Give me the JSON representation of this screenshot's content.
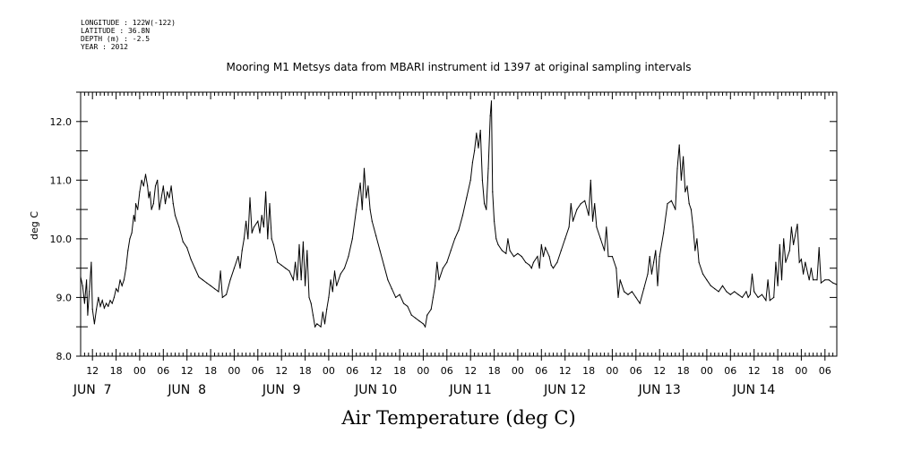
{
  "metadata": {
    "longitude": "LONGITUDE : 122W(-122)",
    "latitude": "LATITUDE : 36.8N",
    "depth": "DEPTH (m) : -2.5",
    "year": "YEAR : 2012"
  },
  "chart_data": {
    "type": "line",
    "title": "Mooring M1 Metsys data from MBARI instrument id 1397 at original sampling intervals",
    "xlabel": "Air Temperature (deg C)",
    "ylabel": "deg C",
    "ylim": [
      8.0,
      12.5
    ],
    "y_ticks": [
      "8.0",
      "9.0",
      "10.0",
      "11.0",
      "12.0"
    ],
    "x_unit": "hours since JUN 7 00:00",
    "xlim": [
      -15,
      177
    ],
    "x_hour_ticks": [
      {
        "x": -12,
        "label": "12"
      },
      {
        "x": -6,
        "label": "18"
      },
      {
        "x": 0,
        "label": "00"
      },
      {
        "x": 6,
        "label": "06"
      },
      {
        "x": 12,
        "label": "12"
      },
      {
        "x": 18,
        "label": "18"
      },
      {
        "x": 24,
        "label": "00"
      },
      {
        "x": 30,
        "label": "06"
      },
      {
        "x": 36,
        "label": "12"
      },
      {
        "x": 42,
        "label": "18"
      },
      {
        "x": 48,
        "label": "00"
      },
      {
        "x": 54,
        "label": "06"
      },
      {
        "x": 60,
        "label": "12"
      },
      {
        "x": 66,
        "label": "18"
      },
      {
        "x": 72,
        "label": "00"
      },
      {
        "x": 78,
        "label": "06"
      },
      {
        "x": 84,
        "label": "12"
      },
      {
        "x": 90,
        "label": "18"
      },
      {
        "x": 96,
        "label": "00"
      },
      {
        "x": 102,
        "label": "06"
      },
      {
        "x": 108,
        "label": "12"
      },
      {
        "x": 114,
        "label": "18"
      },
      {
        "x": 120,
        "label": "00"
      },
      {
        "x": 126,
        "label": "06"
      },
      {
        "x": 132,
        "label": "12"
      },
      {
        "x": 138,
        "label": "18"
      },
      {
        "x": 144,
        "label": "00"
      },
      {
        "x": 150,
        "label": "06"
      },
      {
        "x": 156,
        "label": "12"
      },
      {
        "x": 162,
        "label": "18"
      },
      {
        "x": 168,
        "label": "00"
      },
      {
        "x": 174,
        "label": "06"
      }
    ],
    "x_day_labels": [
      {
        "x": -12,
        "label": "JUN  7"
      },
      {
        "x": 12,
        "label": "JUN  8"
      },
      {
        "x": 36,
        "label": "JUN  9"
      },
      {
        "x": 60,
        "label": "JUN 10"
      },
      {
        "x": 84,
        "label": "JUN 11"
      },
      {
        "x": 108,
        "label": "JUN 12"
      },
      {
        "x": 132,
        "label": "JUN 13"
      },
      {
        "x": 156,
        "label": "JUN 14"
      }
    ],
    "series": [
      {
        "color": "#000000",
        "points": [
          [
            -15,
            9.35
          ],
          [
            -14.5,
            9.2
          ],
          [
            -14,
            8.9
          ],
          [
            -13.5,
            9.3
          ],
          [
            -13.2,
            8.7
          ],
          [
            -12.8,
            9.1
          ],
          [
            -12.3,
            9.6
          ],
          [
            -12,
            8.8
          ],
          [
            -11.5,
            8.55
          ],
          [
            -11,
            8.8
          ],
          [
            -10.5,
            9.0
          ],
          [
            -10,
            8.85
          ],
          [
            -9.5,
            8.95
          ],
          [
            -9,
            8.82
          ],
          [
            -8.5,
            8.9
          ],
          [
            -8,
            8.85
          ],
          [
            -7.5,
            8.95
          ],
          [
            -7,
            8.9
          ],
          [
            -6.5,
            9.0
          ],
          [
            -6,
            9.15
          ],
          [
            -5.5,
            9.1
          ],
          [
            -5,
            9.3
          ],
          [
            -4.5,
            9.2
          ],
          [
            -4,
            9.3
          ],
          [
            -3.5,
            9.5
          ],
          [
            -3,
            9.8
          ],
          [
            -2.5,
            10.0
          ],
          [
            -2,
            10.1
          ],
          [
            -1.5,
            10.4
          ],
          [
            -1.2,
            10.3
          ],
          [
            -1,
            10.6
          ],
          [
            -0.5,
            10.5
          ],
          [
            0,
            10.8
          ],
          [
            0.5,
            11.0
          ],
          [
            1,
            10.9
          ],
          [
            1.5,
            11.1
          ],
          [
            2,
            10.9
          ],
          [
            2.3,
            10.7
          ],
          [
            2.6,
            10.8
          ],
          [
            3,
            10.5
          ],
          [
            3.5,
            10.6
          ],
          [
            4,
            10.9
          ],
          [
            4.5,
            11.0
          ],
          [
            5,
            10.5
          ],
          [
            5.5,
            10.7
          ],
          [
            6,
            10.9
          ],
          [
            6.5,
            10.6
          ],
          [
            7,
            10.8
          ],
          [
            7.5,
            10.7
          ],
          [
            8,
            10.9
          ],
          [
            8.5,
            10.6
          ],
          [
            9,
            10.4
          ],
          [
            10,
            10.2
          ],
          [
            11,
            9.95
          ],
          [
            12,
            9.85
          ],
          [
            13,
            9.65
          ],
          [
            14,
            9.5
          ],
          [
            15,
            9.35
          ],
          [
            16,
            9.3
          ],
          [
            17,
            9.25
          ],
          [
            18,
            9.2
          ],
          [
            19,
            9.15
          ],
          [
            20,
            9.1
          ],
          [
            20.5,
            9.45
          ],
          [
            21,
            9.0
          ],
          [
            22,
            9.05
          ],
          [
            23,
            9.3
          ],
          [
            24,
            9.5
          ],
          [
            25,
            9.7
          ],
          [
            25.5,
            9.5
          ],
          [
            26,
            9.8
          ],
          [
            26.5,
            10.0
          ],
          [
            27,
            10.3
          ],
          [
            27.5,
            10.0
          ],
          [
            28,
            10.7
          ],
          [
            28.5,
            10.1
          ],
          [
            29,
            10.2
          ],
          [
            30,
            10.3
          ],
          [
            30.5,
            10.1
          ],
          [
            31,
            10.4
          ],
          [
            31.5,
            10.2
          ],
          [
            32,
            10.8
          ],
          [
            32.5,
            10.0
          ],
          [
            33,
            10.6
          ],
          [
            33.5,
            10.0
          ],
          [
            34,
            9.9
          ],
          [
            35,
            9.6
          ],
          [
            36,
            9.55
          ],
          [
            37,
            9.5
          ],
          [
            38,
            9.45
          ],
          [
            39,
            9.3
          ],
          [
            39.5,
            9.6
          ],
          [
            40,
            9.3
          ],
          [
            40.5,
            9.9
          ],
          [
            41,
            9.3
          ],
          [
            41.5,
            9.95
          ],
          [
            42,
            9.2
          ],
          [
            42.5,
            9.8
          ],
          [
            43,
            9.0
          ],
          [
            43.5,
            8.9
          ],
          [
            44,
            8.7
          ],
          [
            44.5,
            8.5
          ],
          [
            45,
            8.55
          ],
          [
            46,
            8.5
          ],
          [
            46.5,
            8.75
          ],
          [
            47,
            8.55
          ],
          [
            47.5,
            8.8
          ],
          [
            48,
            9.0
          ],
          [
            48.5,
            9.3
          ],
          [
            49,
            9.1
          ],
          [
            49.5,
            9.45
          ],
          [
            50,
            9.2
          ],
          [
            51,
            9.4
          ],
          [
            52,
            9.5
          ],
          [
            53,
            9.7
          ],
          [
            54,
            10.0
          ],
          [
            55,
            10.5
          ],
          [
            56,
            10.95
          ],
          [
            56.5,
            10.5
          ],
          [
            57,
            11.2
          ],
          [
            57.5,
            10.7
          ],
          [
            58,
            10.9
          ],
          [
            58.5,
            10.5
          ],
          [
            59,
            10.3
          ],
          [
            60,
            10.05
          ],
          [
            61,
            9.8
          ],
          [
            62,
            9.55
          ],
          [
            63,
            9.3
          ],
          [
            64,
            9.15
          ],
          [
            65,
            9.0
          ],
          [
            66,
            9.05
          ],
          [
            67,
            8.9
          ],
          [
            68,
            8.85
          ],
          [
            69,
            8.7
          ],
          [
            70,
            8.65
          ],
          [
            71,
            8.6
          ],
          [
            72,
            8.55
          ],
          [
            72.5,
            8.5
          ],
          [
            73,
            8.7
          ],
          [
            74,
            8.8
          ],
          [
            74.5,
            9.0
          ],
          [
            75,
            9.2
          ],
          [
            75.5,
            9.6
          ],
          [
            76,
            9.3
          ],
          [
            77,
            9.5
          ],
          [
            78,
            9.6
          ],
          [
            79,
            9.8
          ],
          [
            80,
            10.0
          ],
          [
            81,
            10.15
          ],
          [
            82,
            10.4
          ],
          [
            83,
            10.7
          ],
          [
            84,
            11.0
          ],
          [
            84.5,
            11.3
          ],
          [
            85,
            11.5
          ],
          [
            85.5,
            11.8
          ],
          [
            86,
            11.55
          ],
          [
            86.5,
            11.85
          ],
          [
            87,
            11.0
          ],
          [
            87.5,
            10.6
          ],
          [
            88,
            10.5
          ],
          [
            88.5,
            11.2
          ],
          [
            89,
            12.1
          ],
          [
            89.3,
            12.35
          ],
          [
            89.6,
            10.8
          ],
          [
            90,
            10.3
          ],
          [
            90.5,
            10.0
          ],
          [
            91,
            9.9
          ],
          [
            92,
            9.8
          ],
          [
            93,
            9.75
          ],
          [
            93.5,
            10.0
          ],
          [
            94,
            9.8
          ],
          [
            95,
            9.7
          ],
          [
            96,
            9.75
          ],
          [
            97,
            9.7
          ],
          [
            98,
            9.6
          ],
          [
            99,
            9.55
          ],
          [
            99.5,
            9.5
          ],
          [
            100,
            9.6
          ],
          [
            101,
            9.7
          ],
          [
            101.5,
            9.5
          ],
          [
            102,
            9.9
          ],
          [
            102.5,
            9.7
          ],
          [
            103,
            9.85
          ],
          [
            104,
            9.7
          ],
          [
            104.5,
            9.55
          ],
          [
            105,
            9.5
          ],
          [
            106,
            9.6
          ],
          [
            107,
            9.8
          ],
          [
            108,
            10.0
          ],
          [
            109,
            10.2
          ],
          [
            109.5,
            10.6
          ],
          [
            110,
            10.3
          ],
          [
            111,
            10.5
          ],
          [
            112,
            10.6
          ],
          [
            113,
            10.65
          ],
          [
            114,
            10.4
          ],
          [
            114.5,
            11.0
          ],
          [
            115,
            10.3
          ],
          [
            115.5,
            10.6
          ],
          [
            116,
            10.2
          ],
          [
            117,
            10.0
          ],
          [
            118,
            9.8
          ],
          [
            118.5,
            10.2
          ],
          [
            119,
            9.7
          ],
          [
            120,
            9.7
          ],
          [
            121,
            9.5
          ],
          [
            121.5,
            9.0
          ],
          [
            122,
            9.3
          ],
          [
            123,
            9.1
          ],
          [
            124,
            9.05
          ],
          [
            125,
            9.1
          ],
          [
            126,
            9.0
          ],
          [
            127,
            8.9
          ],
          [
            128,
            9.15
          ],
          [
            129,
            9.4
          ],
          [
            129.5,
            9.7
          ],
          [
            130,
            9.4
          ],
          [
            130.5,
            9.6
          ],
          [
            131,
            9.8
          ],
          [
            131.5,
            9.2
          ],
          [
            132,
            9.7
          ],
          [
            133,
            10.1
          ],
          [
            134,
            10.6
          ],
          [
            135,
            10.65
          ],
          [
            136,
            10.5
          ],
          [
            136.5,
            11.2
          ],
          [
            137,
            11.6
          ],
          [
            137.5,
            11.0
          ],
          [
            138,
            11.4
          ],
          [
            138.5,
            10.8
          ],
          [
            139,
            10.9
          ],
          [
            139.5,
            10.6
          ],
          [
            140,
            10.5
          ],
          [
            140.5,
            10.2
          ],
          [
            141,
            9.8
          ],
          [
            141.5,
            10.0
          ],
          [
            142,
            9.6
          ],
          [
            143,
            9.4
          ],
          [
            144,
            9.3
          ],
          [
            145,
            9.2
          ],
          [
            146,
            9.15
          ],
          [
            147,
            9.1
          ],
          [
            148,
            9.2
          ],
          [
            149,
            9.1
          ],
          [
            150,
            9.05
          ],
          [
            151,
            9.1
          ],
          [
            152,
            9.05
          ],
          [
            153,
            9.0
          ],
          [
            154,
            9.1
          ],
          [
            154.5,
            9.0
          ],
          [
            155,
            9.05
          ],
          [
            155.5,
            9.4
          ],
          [
            156,
            9.1
          ],
          [
            157,
            9.0
          ],
          [
            158,
            9.05
          ],
          [
            159,
            8.95
          ],
          [
            159.5,
            9.3
          ],
          [
            160,
            8.95
          ],
          [
            161,
            9.0
          ],
          [
            161.5,
            9.6
          ],
          [
            162,
            9.2
          ],
          [
            162.5,
            9.9
          ],
          [
            163,
            9.3
          ],
          [
            163.5,
            10.0
          ],
          [
            164,
            9.6
          ],
          [
            165,
            9.8
          ],
          [
            165.5,
            10.2
          ],
          [
            166,
            9.9
          ],
          [
            167,
            10.25
          ],
          [
            167.5,
            9.6
          ],
          [
            168,
            9.65
          ],
          [
            168.5,
            9.4
          ],
          [
            169,
            9.6
          ],
          [
            170,
            9.3
          ],
          [
            170.5,
            9.5
          ],
          [
            171,
            9.3
          ],
          [
            172,
            9.3
          ],
          [
            172.5,
            9.85
          ],
          [
            173,
            9.25
          ],
          [
            174,
            9.3
          ],
          [
            175,
            9.3
          ],
          [
            176,
            9.25
          ],
          [
            177,
            9.22
          ]
        ]
      }
    ]
  }
}
